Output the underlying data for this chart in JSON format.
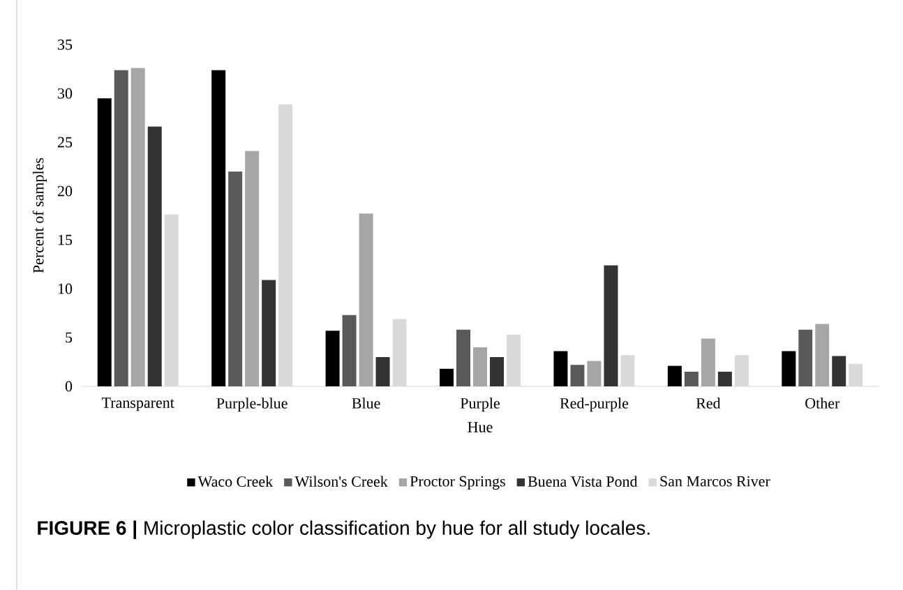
{
  "chart_data": {
    "type": "bar",
    "xlabel": "Hue",
    "ylabel": "Percent of samples",
    "categories": [
      "Transparent",
      "Purple-blue",
      "Blue",
      "Purple",
      "Red-purple",
      "Red",
      "Other"
    ],
    "series": [
      {
        "name": "Waco Creek",
        "color": "#000000",
        "values": [
          29.5,
          32.4,
          5.7,
          1.8,
          3.6,
          2.1,
          3.6
        ]
      },
      {
        "name": "Wilson's Creek",
        "color": "#595959",
        "values": [
          32.4,
          22.0,
          7.3,
          5.8,
          2.2,
          1.5,
          5.8
        ]
      },
      {
        "name": "Proctor Springs",
        "color": "#a6a6a6",
        "values": [
          32.6,
          24.1,
          17.7,
          4.0,
          2.6,
          4.9,
          6.4
        ]
      },
      {
        "name": "Buena Vista Pond",
        "color": "#333333",
        "values": [
          26.6,
          10.9,
          3.0,
          3.0,
          12.4,
          1.5,
          3.1
        ]
      },
      {
        "name": "San Marcos River",
        "color": "#d9d9d9",
        "values": [
          17.6,
          28.9,
          6.9,
          5.3,
          3.2,
          3.2,
          2.3
        ]
      }
    ],
    "ylim": [
      0,
      35
    ],
    "yticks": [
      0,
      5,
      10,
      15,
      20,
      25,
      30,
      35
    ],
    "grid": false,
    "legend": "bottom",
    "annotations": [
      "**FIGURE 6 |** Microplastic color classification by hue for all study locales."
    ]
  }
}
